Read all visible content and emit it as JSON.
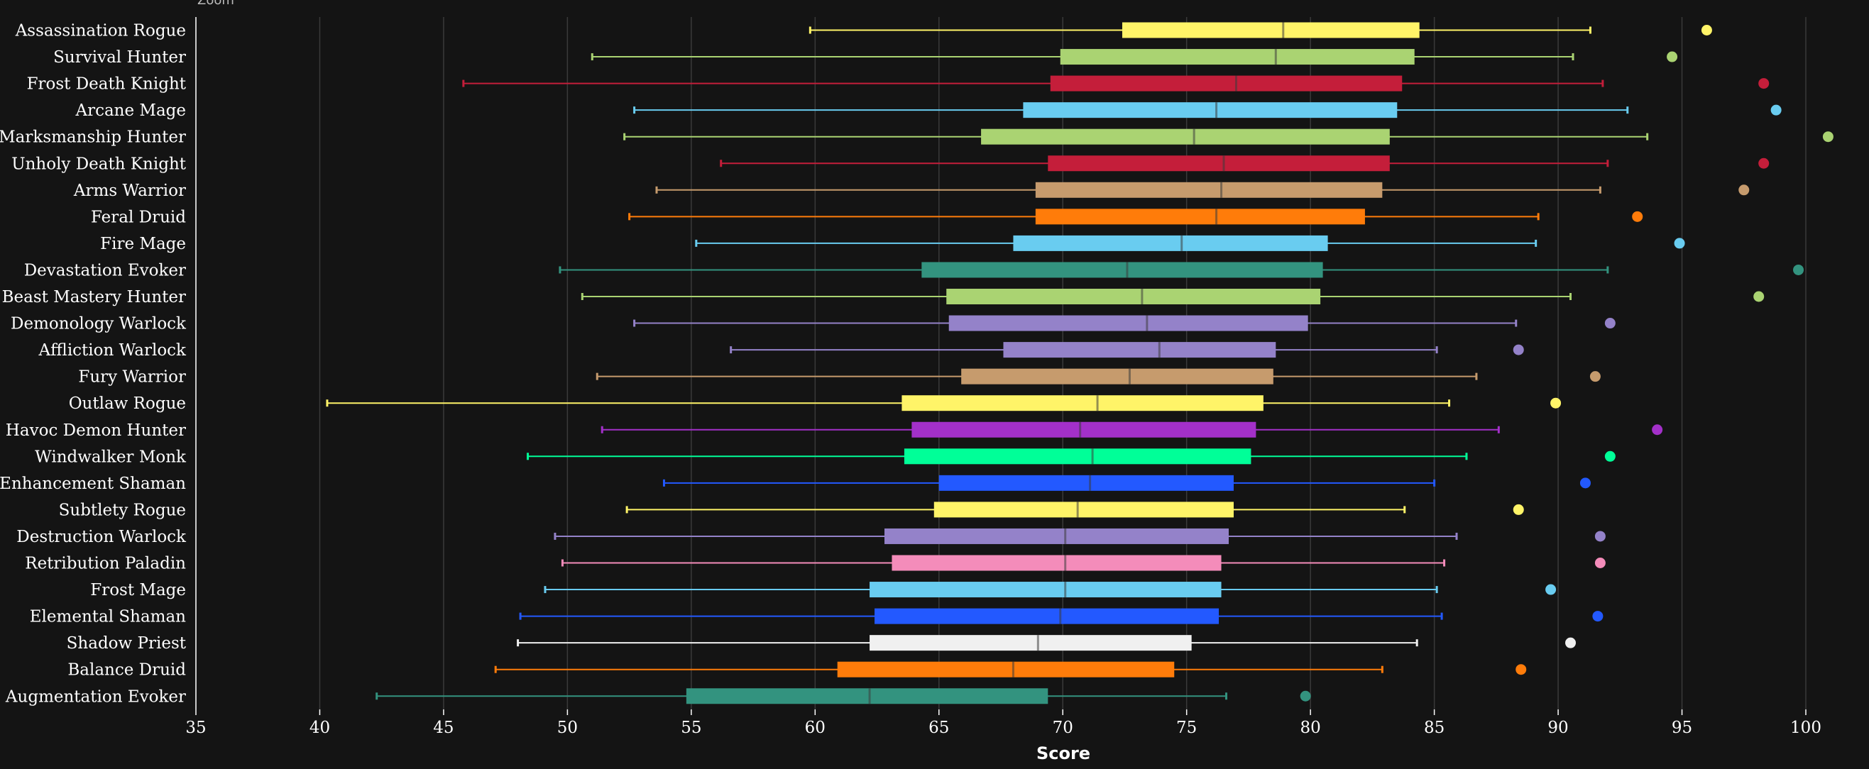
{
  "zoom_label": "Zoom",
  "chart_data": {
    "type": "boxplot",
    "orientation": "horizontal",
    "xlabel": "Score",
    "xlim": [
      35,
      101
    ],
    "xticks": [
      35,
      40,
      45,
      50,
      55,
      60,
      65,
      70,
      75,
      80,
      85,
      90,
      95,
      100
    ],
    "grid": true,
    "specs": [
      {
        "name": "Assassination Rogue",
        "color": "#FFF468",
        "min": 59.8,
        "q1": 72.4,
        "median": 78.9,
        "q3": 84.4,
        "max": 91.3,
        "outlier": 96.0
      },
      {
        "name": "Survival Hunter",
        "color": "#AAD372",
        "min": 51.0,
        "q1": 69.9,
        "median": 78.6,
        "q3": 84.2,
        "max": 90.6,
        "outlier": 94.6
      },
      {
        "name": "Frost Death Knight",
        "color": "#C41E3A",
        "min": 45.8,
        "q1": 69.5,
        "median": 77.0,
        "q3": 83.7,
        "max": 91.8,
        "outlier": 98.3
      },
      {
        "name": "Arcane Mage",
        "color": "#69CCF0",
        "min": 52.7,
        "q1": 68.4,
        "median": 76.2,
        "q3": 83.5,
        "max": 92.8,
        "outlier": 98.8
      },
      {
        "name": "Marksmanship Hunter",
        "color": "#AAD372",
        "min": 52.3,
        "q1": 66.7,
        "median": 75.3,
        "q3": 83.2,
        "max": 93.6,
        "outlier": 100.9
      },
      {
        "name": "Unholy Death Knight",
        "color": "#C41E3A",
        "min": 56.2,
        "q1": 69.4,
        "median": 76.5,
        "q3": 83.2,
        "max": 92.0,
        "outlier": 98.3
      },
      {
        "name": "Arms Warrior",
        "color": "#C69B6D",
        "min": 53.6,
        "q1": 68.9,
        "median": 76.4,
        "q3": 82.9,
        "max": 91.7,
        "outlier": 97.5
      },
      {
        "name": "Feral Druid",
        "color": "#FF7C0A",
        "min": 52.5,
        "q1": 68.9,
        "median": 76.2,
        "q3": 82.2,
        "max": 89.2,
        "outlier": 93.2
      },
      {
        "name": "Fire Mage",
        "color": "#69CCF0",
        "min": 55.2,
        "q1": 68.0,
        "median": 74.8,
        "q3": 80.7,
        "max": 89.1,
        "outlier": 94.9
      },
      {
        "name": "Devastation Evoker",
        "color": "#33937F",
        "min": 49.7,
        "q1": 64.3,
        "median": 72.6,
        "q3": 80.5,
        "max": 92.0,
        "outlier": 99.7
      },
      {
        "name": "Beast Mastery Hunter",
        "color": "#AAD372",
        "min": 50.6,
        "q1": 65.3,
        "median": 73.2,
        "q3": 80.4,
        "max": 90.5,
        "outlier": 98.1
      },
      {
        "name": "Demonology Warlock",
        "color": "#9482C9",
        "min": 52.7,
        "q1": 65.4,
        "median": 73.4,
        "q3": 79.9,
        "max": 88.3,
        "outlier": 92.1
      },
      {
        "name": "Affliction Warlock",
        "color": "#9482C9",
        "min": 56.6,
        "q1": 67.6,
        "median": 73.9,
        "q3": 78.6,
        "max": 85.1,
        "outlier": 88.4
      },
      {
        "name": "Fury Warrior",
        "color": "#C69B6D",
        "min": 51.2,
        "q1": 65.9,
        "median": 72.7,
        "q3": 78.5,
        "max": 86.7,
        "outlier": 91.5
      },
      {
        "name": "Outlaw Rogue",
        "color": "#FFF468",
        "min": 40.3,
        "q1": 63.5,
        "median": 71.4,
        "q3": 78.1,
        "max": 85.6,
        "outlier": 89.9
      },
      {
        "name": "Havoc Demon Hunter",
        "color": "#A330C9",
        "min": 51.4,
        "q1": 63.9,
        "median": 70.7,
        "q3": 77.8,
        "max": 87.6,
        "outlier": 94.0
      },
      {
        "name": "Windwalker Monk",
        "color": "#00FF98",
        "min": 48.4,
        "q1": 63.6,
        "median": 71.2,
        "q3": 77.6,
        "max": 86.3,
        "outlier": 92.1
      },
      {
        "name": "Enhancement Shaman",
        "color": "#2359FF",
        "min": 53.9,
        "q1": 65.0,
        "median": 71.1,
        "q3": 76.9,
        "max": 85.0,
        "outlier": 91.1
      },
      {
        "name": "Subtlety Rogue",
        "color": "#FFF468",
        "min": 52.4,
        "q1": 64.8,
        "median": 70.6,
        "q3": 76.9,
        "max": 83.8,
        "outlier": 88.4
      },
      {
        "name": "Destruction Warlock",
        "color": "#9482C9",
        "min": 49.5,
        "q1": 62.8,
        "median": 70.1,
        "q3": 76.7,
        "max": 85.9,
        "outlier": 91.7
      },
      {
        "name": "Retribution Paladin",
        "color": "#F48CBA",
        "min": 49.8,
        "q1": 63.1,
        "median": 70.1,
        "q3": 76.4,
        "max": 85.4,
        "outlier": 91.7
      },
      {
        "name": "Frost Mage",
        "color": "#69CCF0",
        "min": 49.1,
        "q1": 62.2,
        "median": 70.1,
        "q3": 76.4,
        "max": 85.1,
        "outlier": 89.7
      },
      {
        "name": "Elemental Shaman",
        "color": "#2359FF",
        "min": 48.1,
        "q1": 62.4,
        "median": 69.9,
        "q3": 76.3,
        "max": 85.3,
        "outlier": 91.6
      },
      {
        "name": "Shadow Priest",
        "color": "#F0F0F0",
        "min": 48.0,
        "q1": 62.2,
        "median": 69.0,
        "q3": 75.2,
        "max": 84.3,
        "outlier": 90.5
      },
      {
        "name": "Balance Druid",
        "color": "#FF7C0A",
        "min": 47.1,
        "q1": 60.9,
        "median": 68.0,
        "q3": 74.5,
        "max": 82.9,
        "outlier": 88.5
      },
      {
        "name": "Augmentation Evoker",
        "color": "#33937F",
        "min": 42.3,
        "q1": 54.8,
        "median": 62.2,
        "q3": 69.4,
        "max": 76.6,
        "outlier": 79.8
      }
    ]
  }
}
